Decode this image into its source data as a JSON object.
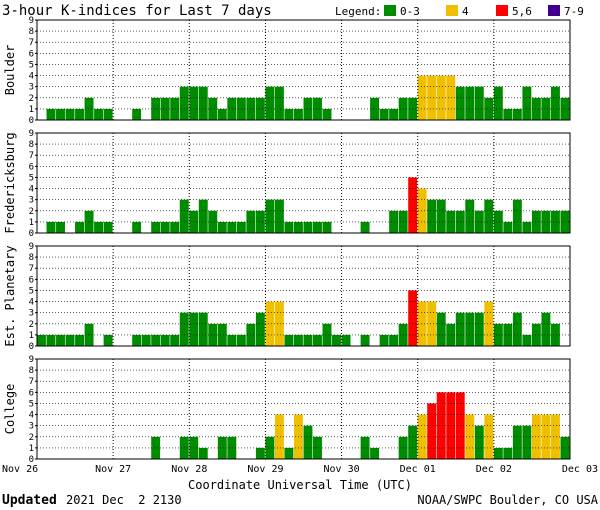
{
  "chart_data": {
    "type": "bar",
    "title": "3-hour K-indices for Last 7 days",
    "legend": {
      "label": "Legend:",
      "placement": "top-right",
      "items": [
        {
          "label": "0-3",
          "color": "#008c00"
        },
        {
          "label": "4",
          "color": "#f0c000"
        },
        {
          "label": "5,6",
          "color": "#ff0000"
        },
        {
          "label": "7-9",
          "color": "#400090"
        }
      ]
    },
    "ylim": [
      0,
      9
    ],
    "yticks": [
      "0",
      "1",
      "2",
      "3",
      "4",
      "5",
      "6",
      "7",
      "8",
      "9"
    ],
    "grid": true,
    "xlabel": "Coordinate Universal Time (UTC)",
    "x_tick_labels": [
      "Nov 26",
      "Nov 27",
      "Nov 28",
      "Nov 29",
      "Nov 30",
      "Dec 01",
      "Dec 02",
      "Dec 03"
    ],
    "intervals_per_day": 8,
    "panels": [
      {
        "name": "Boulder",
        "values": [
          0,
          1,
          1,
          1,
          1,
          2,
          1,
          1,
          0,
          0,
          1,
          0,
          2,
          2,
          2,
          3,
          3,
          3,
          2,
          1,
          2,
          2,
          2,
          2,
          3,
          3,
          1,
          1,
          2,
          2,
          1,
          0,
          0,
          0,
          0,
          2,
          1,
          1,
          2,
          2,
          4,
          4,
          4,
          4,
          3,
          3,
          3,
          2,
          3,
          1,
          1,
          3,
          2,
          2,
          3,
          2,
          0
        ]
      },
      {
        "name": "Fredericksburg",
        "values": [
          0,
          1,
          1,
          0,
          1,
          2,
          1,
          1,
          0,
          0,
          1,
          0,
          1,
          1,
          1,
          3,
          2,
          3,
          2,
          1,
          1,
          1,
          2,
          2,
          3,
          3,
          1,
          1,
          1,
          1,
          1,
          0,
          0,
          0,
          1,
          0,
          0,
          2,
          2,
          5,
          4,
          3,
          3,
          2,
          2,
          3,
          2,
          3,
          2,
          1,
          3,
          1,
          2,
          2,
          2,
          2,
          0
        ]
      },
      {
        "name": "Est. Planetary",
        "values": [
          1,
          1,
          1,
          1,
          1,
          2,
          0,
          1,
          0,
          0,
          1,
          1,
          1,
          1,
          1,
          3,
          3,
          3,
          2,
          2,
          1,
          1,
          2,
          3,
          4,
          4,
          1,
          1,
          1,
          1,
          2,
          1,
          1,
          0,
          1,
          0,
          1,
          1,
          2,
          5,
          4,
          4,
          3,
          2,
          3,
          3,
          3,
          4,
          2,
          2,
          3,
          1,
          2,
          3,
          2,
          0,
          0
        ]
      },
      {
        "name": "College",
        "values": [
          0,
          0,
          0,
          0,
          0,
          0,
          0,
          0,
          0,
          0,
          0,
          0,
          2,
          0,
          0,
          2,
          2,
          1,
          0,
          2,
          2,
          0,
          0,
          1,
          2,
          4,
          1,
          4,
          3,
          2,
          0,
          0,
          0,
          0,
          2,
          1,
          0,
          0,
          2,
          3,
          4,
          5,
          6,
          6,
          6,
          4,
          3,
          4,
          1,
          1,
          3,
          3,
          4,
          4,
          4,
          2,
          0
        ]
      }
    ]
  },
  "footer": {
    "updated_label": "Updated",
    "updated_value": "2021 Dec  2 2130",
    "source": "NOAA/SWPC Boulder, CO USA"
  }
}
